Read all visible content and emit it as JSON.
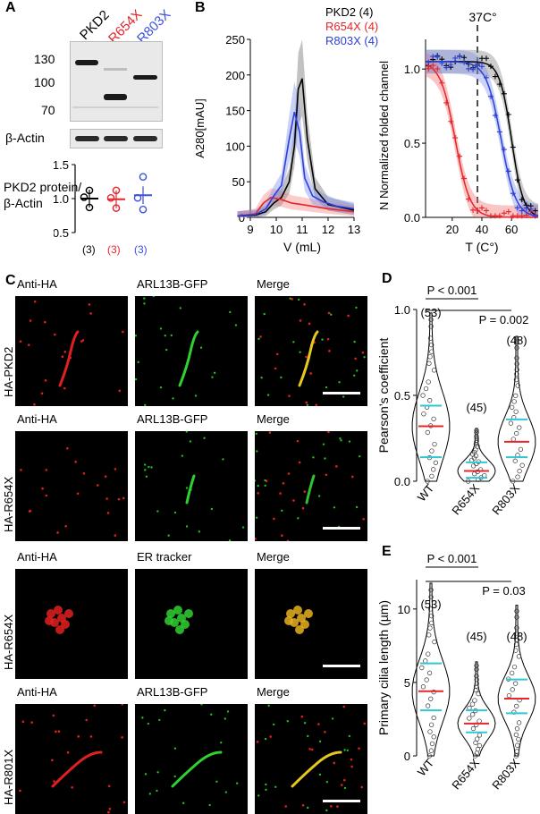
{
  "panels": {
    "A": {
      "label": "A",
      "lanes": [
        "PKD2",
        "R654X",
        "R803X"
      ],
      "lane_colors": [
        "#000000",
        "#e8242b",
        "#3b50e0"
      ],
      "mw_markers": [
        "130",
        "100",
        "70"
      ],
      "loading_label": "β-Actin",
      "ylabel_line1": "PKD2 protein/",
      "ylabel_line2": "β-Actin",
      "n_labels": [
        "(3)",
        "(3)",
        "(3)"
      ]
    },
    "B": {
      "label": "B",
      "legend": [
        "PKD2 (4)",
        "R654X (4)",
        "R803X (4)"
      ],
      "marker_label": "37C°"
    },
    "C": {
      "label": "C",
      "rows": [
        {
          "name": "HA-PKD2",
          "cols": [
            "Anti-HA",
            "ARL13B-GFP",
            "Merge"
          ]
        },
        {
          "name": "HA-R654X",
          "cols": [
            "Anti-HA",
            "ARL13B-GFP",
            "Merge"
          ]
        },
        {
          "name": "HA-R654X",
          "cols": [
            "Anti-HA",
            "ER tracker",
            "Merge"
          ]
        },
        {
          "name": "HA-R801X",
          "cols": [
            "Anti-HA",
            "ARL13B-GFP",
            "Merge"
          ]
        }
      ]
    },
    "D": {
      "label": "D",
      "p1": "P < 0.001",
      "p2": "P = 0.002",
      "n_labels": [
        "(53)",
        "(45)",
        "(48)"
      ]
    },
    "E": {
      "label": "E",
      "p1": "P < 0.001",
      "p2": "P = 0.03",
      "n_labels": [
        "(53)",
        "(45)",
        "(48)"
      ]
    }
  },
  "chart_data": [
    {
      "id": "A-dotplot",
      "type": "scatter",
      "categories": [
        "PKD2",
        "R654X",
        "R803X"
      ],
      "ylabel": "PKD2 protein/β-Actin",
      "ylim": [
        0.5,
        1.5
      ],
      "yticks": [
        "0.5",
        "1.0",
        "1.5"
      ],
      "series": [
        {
          "name": "PKD2",
          "color": "#000000",
          "points": [
            1.12,
            1.02,
            0.87
          ],
          "mean": 1.0
        },
        {
          "name": "R654X",
          "color": "#e8242b",
          "points": [
            1.12,
            1.01,
            0.86
          ],
          "mean": 0.99
        },
        {
          "name": "R803X",
          "color": "#3b50e0",
          "points": [
            1.32,
            1.01,
            0.84
          ],
          "mean": 1.05
        }
      ]
    },
    {
      "id": "B-sec",
      "type": "line",
      "xlabel": "V (mL)",
      "ylabel": "A280[mAU]",
      "xlim": [
        9,
        13
      ],
      "ylim": [
        0,
        250
      ],
      "xticks": [
        "9",
        "10",
        "11",
        "12",
        "13"
      ],
      "yticks": [
        "0",
        "50",
        "100",
        "150",
        "200",
        "250"
      ],
      "series": [
        {
          "name": "PKD2 (4)",
          "color": "#000000",
          "x": [
            8.5,
            9.2,
            9.6,
            9.9,
            10.2,
            10.5,
            10.7,
            10.85,
            11.0,
            11.2,
            11.5,
            12.0,
            12.5,
            13.0
          ],
          "y": [
            2,
            3,
            8,
            20,
            28,
            50,
            100,
            180,
            195,
            110,
            40,
            18,
            14,
            10
          ]
        },
        {
          "name": "R654X (4)",
          "color": "#e8242b",
          "x": [
            8.5,
            9.2,
            9.5,
            9.8,
            10.2,
            10.6,
            11.0,
            11.5,
            12.0,
            12.5,
            13.0
          ],
          "y": [
            2,
            5,
            20,
            28,
            25,
            20,
            18,
            15,
            12,
            10,
            8
          ]
        },
        {
          "name": "R803X (4)",
          "color": "#2d3fd6",
          "x": [
            8.5,
            9.2,
            9.6,
            9.9,
            10.2,
            10.5,
            10.7,
            10.9,
            11.1,
            11.4,
            11.8,
            12.3,
            13.0
          ],
          "y": [
            2,
            4,
            12,
            30,
            45,
            110,
            148,
            120,
            55,
            30,
            22,
            16,
            12
          ]
        }
      ]
    },
    {
      "id": "B-thermal",
      "type": "line",
      "xlabel": "T (C°)",
      "ylabel": "N  Normalized folded channel",
      "xlim": [
        2,
        78
      ],
      "ylim": [
        0,
        1.2
      ],
      "xticks": [
        "20",
        "40",
        "60"
      ],
      "yticks": [
        "0.0",
        "0.5",
        "1.0"
      ],
      "vline_x": 37,
      "series": [
        {
          "name": "PKD2",
          "color": "#000000",
          "tm": 60,
          "slope": 4
        },
        {
          "name": "R654X",
          "color": "#e8242b",
          "tm": 22,
          "slope": 5
        },
        {
          "name": "R803X",
          "color": "#2d3fd6",
          "tm": 53,
          "slope": 5
        }
      ]
    },
    {
      "id": "D-violin",
      "type": "scatter",
      "ylabel": "Pearson’s coefficient",
      "categories": [
        "WT",
        "R654X",
        "R803X"
      ],
      "ylim": [
        0,
        1.0
      ],
      "yticks": [
        "0.0",
        "0.5",
        "1.0"
      ],
      "groups": [
        {
          "name": "WT",
          "median": 0.32,
          "q1": 0.14,
          "q3": 0.44
        },
        {
          "name": "R654X",
          "median": 0.06,
          "q1": 0.02,
          "q3": 0.11
        },
        {
          "name": "R803X",
          "median": 0.23,
          "q1": 0.14,
          "q3": 0.36
        }
      ]
    },
    {
      "id": "E-violin",
      "type": "scatter",
      "ylabel": "Primary cilia length (µm)",
      "categories": [
        "WT",
        "R654X",
        "R803X"
      ],
      "ylim": [
        0,
        12
      ],
      "yticks": [
        "0",
        "5",
        "10"
      ],
      "groups": [
        {
          "name": "WT",
          "median": 4.4,
          "q1": 3.1,
          "q3": 6.3
        },
        {
          "name": "R654X",
          "median": 2.2,
          "q1": 1.6,
          "q3": 3.1
        },
        {
          "name": "R803X",
          "median": 3.9,
          "q1": 2.9,
          "q3": 5.2
        }
      ]
    }
  ]
}
